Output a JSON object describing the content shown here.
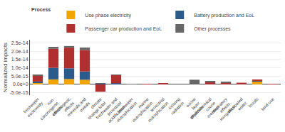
{
  "chart_data": {
    "type": "bar",
    "stacked": true,
    "categories": [
      "freshwater\necotoxicity",
      "non-\ncarcinogenic\neffects",
      "carcinogenic\neffects",
      "minerals and\nmetals",
      "climate\nchange total",
      "freshwater and\nterrestrial\nacidification",
      "freshwater\neutrophication",
      "marine\neutrophication",
      "terrestrial\neutrophication",
      "ionising\nradiation",
      "ozone\nlayer\ndepletion",
      "photochemical\nozone\ncreation",
      "respiratory\neffects,\ninorganics",
      "dissipated\nwater",
      "fossils",
      "land use"
    ],
    "series": [
      {
        "name": "Use phase electricity",
        "color": "#f0a500",
        "values": [
          1e-15,
          3e-15,
          3.2e-15,
          2.8e-15,
          0.0,
          1.5e-16,
          0.0,
          0.0,
          0.0,
          0.0,
          0.0,
          0.0,
          0.0,
          0.0,
          1.8e-15,
          1.2e-16
        ]
      },
      {
        "name": "Battery production and EoL",
        "color": "#2b5b8a",
        "values": [
          7e-16,
          7e-15,
          6.5e-15,
          5e-15,
          4e-16,
          5e-16,
          5e-17,
          0.0,
          0.0,
          0.0,
          0.0,
          0.0,
          0.0,
          0.0,
          2.5e-16,
          0.0
        ]
      },
      {
        "name": "Passenger car production and EoL",
        "color": "#b03030",
        "values": [
          3.8e-15,
          1.15e-14,
          1.25e-14,
          1.3e-14,
          -4.5e-15,
          5e-15,
          2e-16,
          1.2e-16,
          7e-16,
          0.0,
          0.0,
          1.5e-15,
          9e-16,
          1e-15,
          9e-16,
          8e-17
        ]
      },
      {
        "name": "Other processes",
        "color": "#666666",
        "values": [
          3e-16,
          1.2e-15,
          1e-15,
          1.5e-15,
          1.5e-16,
          1e-16,
          4e-17,
          0.0,
          0.0,
          0.0,
          2.8e-15,
          5e-16,
          5e-16,
          0.0,
          0.0,
          0.0
        ]
      }
    ],
    "ylabel": "Normalized impacts",
    "legend_title": "Process",
    "legend": "top left",
    "ylim": [
      -6.5e-15,
      2.7e-14
    ],
    "yticks": [
      {
        "value": -5e-15,
        "label": "-5.0e-15"
      },
      {
        "value": 0.0,
        "label": "0.0e+0"
      },
      {
        "value": 5e-15,
        "label": "5.0e-15"
      },
      {
        "value": 1e-14,
        "label": "1.0e-14"
      },
      {
        "value": 1.5e-14,
        "label": "1.5e-14"
      },
      {
        "value": 2e-14,
        "label": "2.0e-14"
      },
      {
        "value": 2.5e-14,
        "label": "2.5e-14"
      }
    ],
    "grid": true
  }
}
